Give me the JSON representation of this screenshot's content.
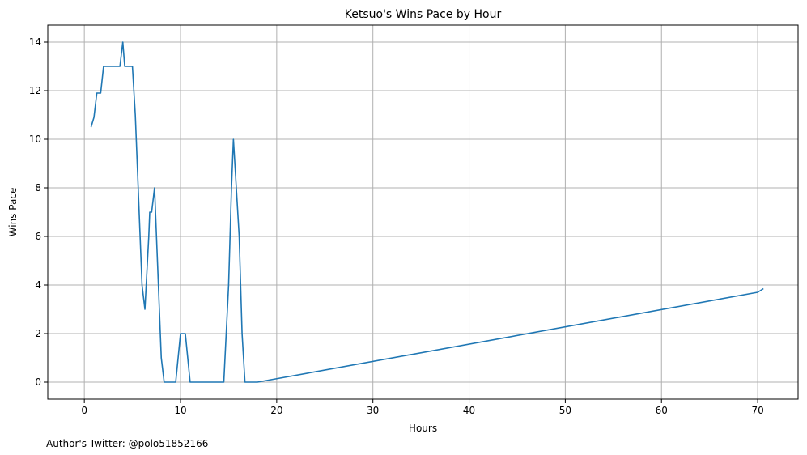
{
  "chart_data": {
    "type": "line",
    "title": "Ketsuo's Wins Pace by Hour",
    "xlabel": "Hours",
    "ylabel": "Wins Pace",
    "xlim": [
      -3.8,
      74.2
    ],
    "ylim": [
      -0.7,
      14.7
    ],
    "xticks": [
      0,
      10,
      20,
      30,
      40,
      50,
      60,
      70
    ],
    "yticks": [
      0,
      2,
      4,
      6,
      8,
      10,
      12,
      14
    ],
    "grid": true,
    "line_color": "#1f77b4",
    "series": [
      {
        "x": [
          0.7,
          1.0,
          1.3,
          1.7,
          2.0,
          2.5,
          3.0,
          3.5,
          3.7,
          4.0,
          4.2,
          4.5,
          5.0,
          5.3,
          5.6,
          6.0,
          6.3,
          6.7,
          6.8,
          7.0,
          7.3,
          7.5,
          7.8,
          8.0,
          8.3,
          8.7,
          9.0,
          9.5,
          10.0,
          10.5,
          11.0,
          11.5,
          12.0,
          13.0,
          14.0,
          14.5,
          15.0,
          15.3,
          15.5,
          15.8,
          16.1,
          16.4,
          16.7,
          17.0,
          18.0,
          70.0,
          70.6
        ],
        "y": [
          10.5,
          10.9,
          11.9,
          11.9,
          13.0,
          13.0,
          13.0,
          13.0,
          13.0,
          14.0,
          13.0,
          13.0,
          13.0,
          11.0,
          8.0,
          4.0,
          3.0,
          6.0,
          7.0,
          7.0,
          8.0,
          6.0,
          3.0,
          1.0,
          0.0,
          0.0,
          0.0,
          0.0,
          2.0,
          2.0,
          0.0,
          0.0,
          0.0,
          0.0,
          0.0,
          0.0,
          4.0,
          8.0,
          10.0,
          8.0,
          6.0,
          2.0,
          0.0,
          0.0,
          0.0,
          3.7,
          3.85
        ]
      }
    ]
  },
  "footer": {
    "credit": "Author's Twitter: @polo51852166"
  }
}
